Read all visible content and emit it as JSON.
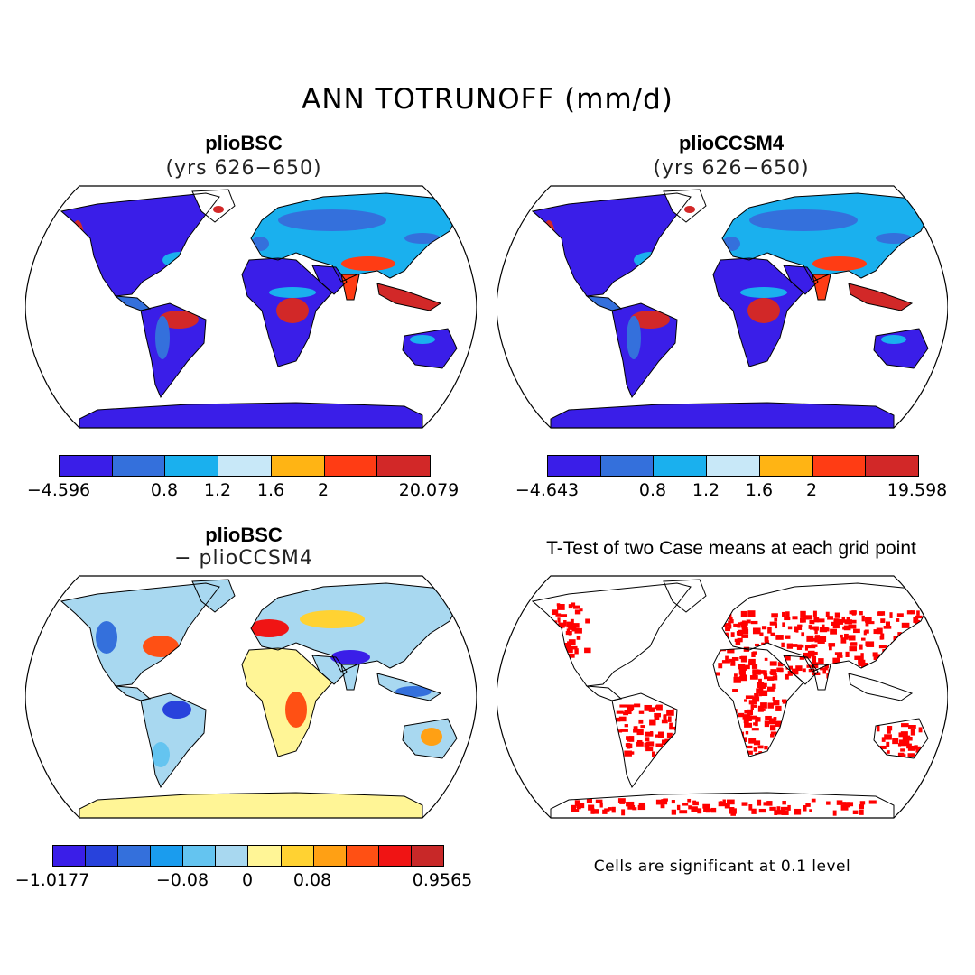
{
  "main_title": "ANN TOTRUNOFF (mm/d)",
  "panels": [
    {
      "title": "plioBSC",
      "subtitle": "(yrs 626−650)",
      "colorbar": {
        "colors": [
          "#3a1ee8",
          "#3470dc",
          "#1ab0ee",
          "#c8e8f8",
          "#ffb414",
          "#ff3c14",
          "#d22828"
        ],
        "labels": [
          "−4.596",
          "0.8",
          "1.2",
          "1.6",
          "2",
          "20.079"
        ]
      }
    },
    {
      "title": "plioCCSM4",
      "subtitle": "(yrs 626−650)",
      "colorbar": {
        "colors": [
          "#3a1ee8",
          "#3470dc",
          "#1ab0ee",
          "#c8e8f8",
          "#ffb414",
          "#ff3c14",
          "#d22828"
        ],
        "labels": [
          "−4.643",
          "0.8",
          "1.2",
          "1.6",
          "2",
          "19.598"
        ]
      }
    },
    {
      "title": "plioBSC",
      "subtitle": "− plioCCSM4",
      "colorbar": {
        "colors": [
          "#3a1ee8",
          "#2842dc",
          "#3470dc",
          "#1a9cee",
          "#64c4f0",
          "#a8d8f0",
          "#fff596",
          "#ffd232",
          "#ffa014",
          "#ff5014",
          "#f01414",
          "#c82828"
        ],
        "labels": [
          "−1.0177",
          "−0.08",
          "0",
          "0.08",
          "0.9565"
        ]
      }
    },
    {
      "title": "T-Test of two Case means at each grid point",
      "note": "Cells are significant at 0.1 level"
    }
  ]
}
